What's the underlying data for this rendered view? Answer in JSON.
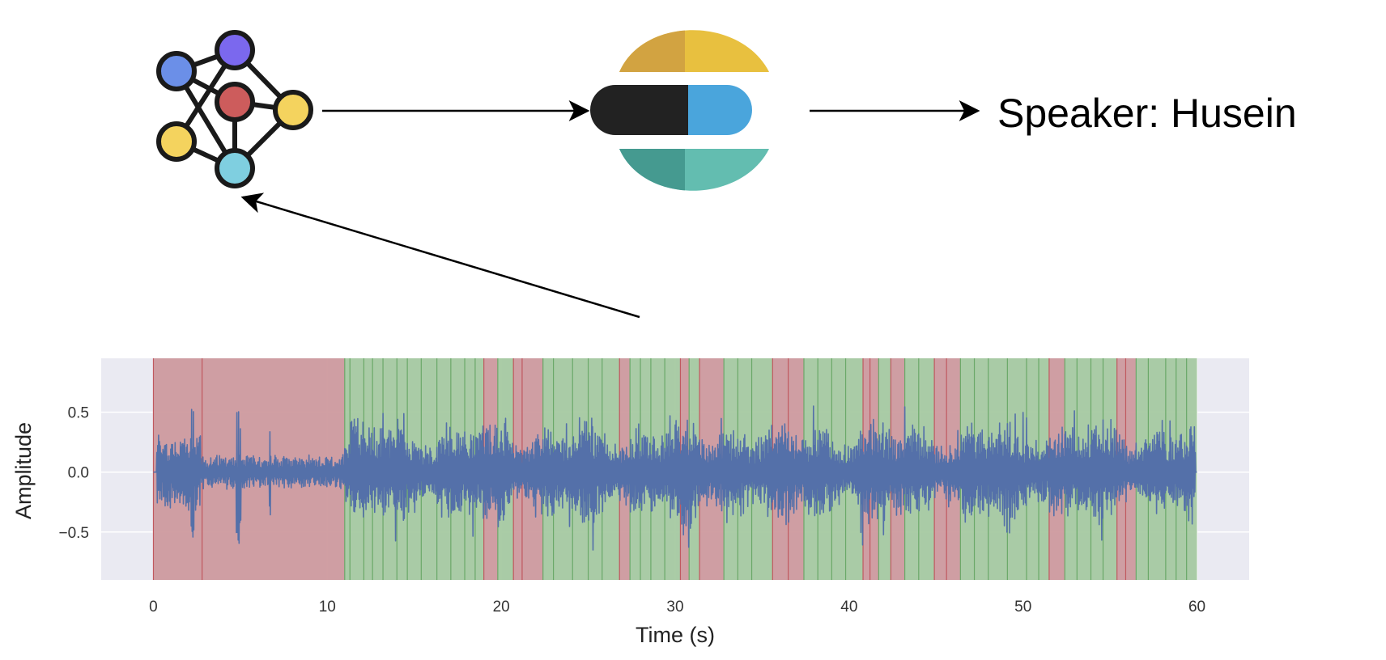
{
  "speaker_output": {
    "text": "Speaker: Husein"
  },
  "network_icon": {
    "node_colors": [
      "#6b8fe8",
      "#7b68ee",
      "#cd5c5c",
      "#f4d35e",
      "#f4d35e",
      "#7fcfe0"
    ]
  },
  "elastic_logo": {
    "colors": {
      "top": "#e8c03f",
      "top_dark": "#d2a341",
      "middle_black": "#222222",
      "middle_blue": "#4aa5dc",
      "bottom": "#63bdb0",
      "bottom_dark": "#459a90"
    }
  },
  "chart_data": {
    "type": "line",
    "xlabel": "Time (s)",
    "ylabel": "Amplitude",
    "xlim": [
      -3,
      63
    ],
    "ylim": [
      -0.9,
      0.95
    ],
    "xticks": [
      0,
      10,
      20,
      30,
      40,
      50,
      60
    ],
    "xtick_labels": [
      "0",
      "10",
      "20",
      "30",
      "40",
      "50",
      "60"
    ],
    "yticks": [
      0.5,
      0.0,
      -0.5
    ],
    "ytick_labels": [
      "0.5",
      "0.0",
      "−0.5"
    ],
    "grid": true,
    "background": "#eaeaf2",
    "series": [
      {
        "color": "#5470a9"
      }
    ],
    "region_colors": {
      "red": "#cd9a9e",
      "green": "#a5c9a1"
    },
    "regions": [
      {
        "start": 0,
        "end": 11,
        "color": "red"
      },
      {
        "start": 11,
        "end": 19.0,
        "color": "green"
      },
      {
        "start": 19.0,
        "end": 19.8,
        "color": "red"
      },
      {
        "start": 19.8,
        "end": 20.7,
        "color": "green"
      },
      {
        "start": 20.7,
        "end": 22.4,
        "color": "red"
      },
      {
        "start": 22.4,
        "end": 26.8,
        "color": "green"
      },
      {
        "start": 26.8,
        "end": 27.4,
        "color": "red"
      },
      {
        "start": 27.4,
        "end": 30.3,
        "color": "green"
      },
      {
        "start": 30.3,
        "end": 30.8,
        "color": "red"
      },
      {
        "start": 30.8,
        "end": 31.4,
        "color": "green"
      },
      {
        "start": 31.4,
        "end": 32.8,
        "color": "red"
      },
      {
        "start": 32.8,
        "end": 35.6,
        "color": "green"
      },
      {
        "start": 35.6,
        "end": 37.4,
        "color": "red"
      },
      {
        "start": 37.4,
        "end": 40.8,
        "color": "green"
      },
      {
        "start": 40.8,
        "end": 41.7,
        "color": "red"
      },
      {
        "start": 41.7,
        "end": 42.4,
        "color": "green"
      },
      {
        "start": 42.4,
        "end": 43.2,
        "color": "red"
      },
      {
        "start": 43.2,
        "end": 44.9,
        "color": "green"
      },
      {
        "start": 44.9,
        "end": 46.4,
        "color": "red"
      },
      {
        "start": 46.4,
        "end": 51.5,
        "color": "green"
      },
      {
        "start": 51.5,
        "end": 52.4,
        "color": "red"
      },
      {
        "start": 52.4,
        "end": 55.4,
        "color": "green"
      },
      {
        "start": 55.4,
        "end": 56.5,
        "color": "red"
      },
      {
        "start": 56.5,
        "end": 60.0,
        "color": "green"
      }
    ],
    "boundary_lines": [
      2.8,
      11.3,
      12.1,
      12.6,
      13.2,
      14.0,
      14.6,
      15.4,
      16.3,
      17.1,
      17.9,
      18.5,
      21.2,
      23.0,
      24.1,
      25.0,
      25.8,
      28.0,
      28.6,
      29.4,
      33.6,
      34.4,
      36.5,
      38.2,
      39.0,
      39.8,
      41.2,
      44.0,
      45.6,
      47.2,
      48.0,
      49.1,
      50.2,
      50.9,
      53.1,
      53.9,
      54.6,
      55.9,
      57.2,
      58.2,
      58.8,
      59.4
    ]
  }
}
